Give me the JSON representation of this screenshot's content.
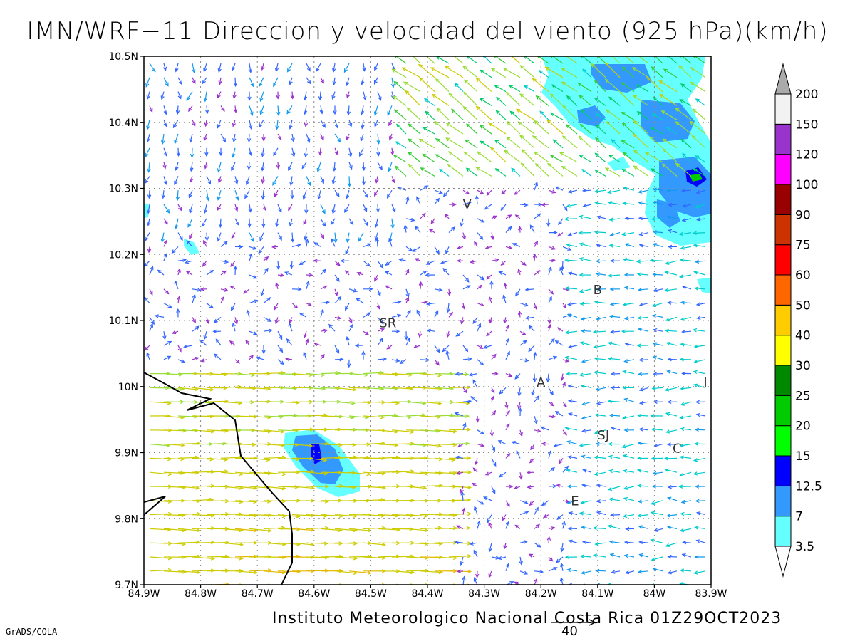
{
  "title": "IMN/WRF−11 Direccion y velocidad del viento (925 hPa)(km/h)",
  "footer": "Instituto Meteorologico Nacional Costa Rica 01Z29OCT2023",
  "credit": "GrADS/COLA",
  "reference_vector": {
    "label": "40"
  },
  "map": {
    "lon_range": [
      -84.9,
      -83.9
    ],
    "lat_range": [
      9.7,
      10.5
    ],
    "x_ticks": [
      "84.9W",
      "84.8W",
      "84.7W",
      "84.6W",
      "84.5W",
      "84.4W",
      "84.3W",
      "84.2W",
      "84.1W",
      "84W",
      "83.9W"
    ],
    "y_ticks": [
      "9.7N",
      "9.8N",
      "9.9N",
      "10N",
      "10.1N",
      "10.2N",
      "10.3N",
      "10.4N",
      "10.5N"
    ],
    "grid": "dotted"
  },
  "stations": [
    {
      "label": "V",
      "lon": -84.33,
      "lat": 10.27
    },
    {
      "label": "SR",
      "lon": -84.47,
      "lat": 10.09
    },
    {
      "label": "B",
      "lon": -84.1,
      "lat": 10.14
    },
    {
      "label": "A",
      "lon": -84.2,
      "lat": 10.0
    },
    {
      "label": "I",
      "lon": -83.91,
      "lat": 10.0
    },
    {
      "label": "SJ",
      "lon": -84.09,
      "lat": 9.92
    },
    {
      "label": "C",
      "lon": -83.96,
      "lat": 9.9
    },
    {
      "label": "E",
      "lon": -84.14,
      "lat": 9.82
    }
  ],
  "legend": {
    "levels": [
      "3.5",
      "7",
      "12.5",
      "15",
      "20",
      "25",
      "30",
      "40",
      "50",
      "60",
      "75",
      "90",
      "100",
      "120",
      "150",
      "200"
    ],
    "colors": [
      "#66ffff",
      "#3399ff",
      "#0000ff",
      "#00ff00",
      "#00cc00",
      "#008800",
      "#ffff00",
      "#ffcc00",
      "#ff6600",
      "#ff0000",
      "#cc3300",
      "#990000",
      "#ff00ff",
      "#9933cc",
      "#f2f2f2",
      "#aaaaaa"
    ]
  }
}
